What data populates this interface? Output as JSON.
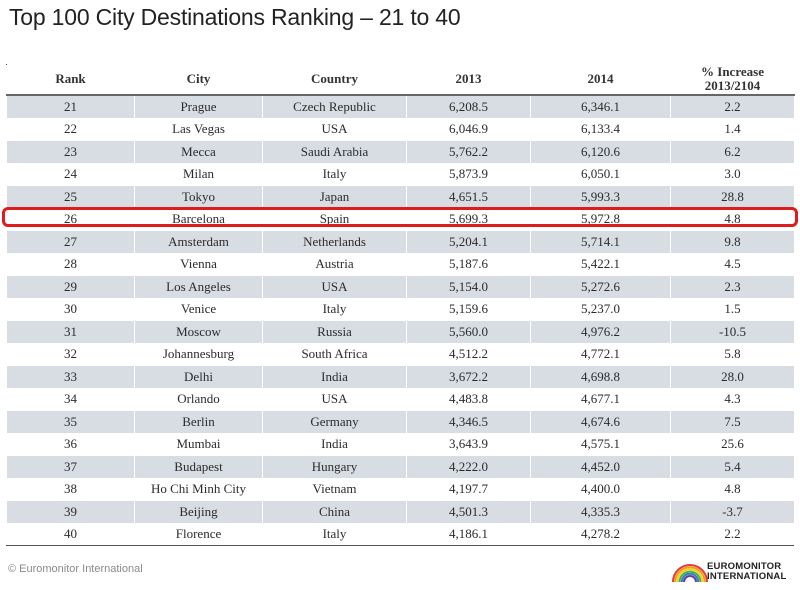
{
  "title": "Top 100 City Destinations Ranking – 21 to 40",
  "columns": {
    "rank": "Rank",
    "city": "City",
    "country": "Country",
    "y2013": "2013",
    "y2014": "2014",
    "increase_line1": "% Increase",
    "increase_line2": "2013/2104"
  },
  "rows": [
    {
      "rank": "21",
      "city": "Prague",
      "country": "Czech Republic",
      "y2013": "6,208.5",
      "y2014": "6,346.1",
      "increase": "2.2"
    },
    {
      "rank": "22",
      "city": "Las Vegas",
      "country": "USA",
      "y2013": "6,046.9",
      "y2014": "6,133.4",
      "increase": "1.4"
    },
    {
      "rank": "23",
      "city": "Mecca",
      "country": "Saudi Arabia",
      "y2013": "5,762.2",
      "y2014": "6,120.6",
      "increase": "6.2"
    },
    {
      "rank": "24",
      "city": "Milan",
      "country": "Italy",
      "y2013": "5,873.9",
      "y2014": "6,050.1",
      "increase": "3.0"
    },
    {
      "rank": "25",
      "city": "Tokyo",
      "country": "Japan",
      "y2013": "4,651.5",
      "y2014": "5,993.3",
      "increase": "28.8"
    },
    {
      "rank": "26",
      "city": "Barcelona",
      "country": "Spain",
      "y2013": "5,699.3",
      "y2014": "5,972.8",
      "increase": "4.8"
    },
    {
      "rank": "27",
      "city": "Amsterdam",
      "country": "Netherlands",
      "y2013": "5,204.1",
      "y2014": "5,714.1",
      "increase": "9.8"
    },
    {
      "rank": "28",
      "city": "Vienna",
      "country": "Austria",
      "y2013": "5,187.6",
      "y2014": "5,422.1",
      "increase": "4.5"
    },
    {
      "rank": "29",
      "city": "Los Angeles",
      "country": "USA",
      "y2013": "5,154.0",
      "y2014": "5,272.6",
      "increase": "2.3"
    },
    {
      "rank": "30",
      "city": "Venice",
      "country": "Italy",
      "y2013": "5,159.6",
      "y2014": "5,237.0",
      "increase": "1.5"
    },
    {
      "rank": "31",
      "city": "Moscow",
      "country": "Russia",
      "y2013": "5,560.0",
      "y2014": "4,976.2",
      "increase": "-10.5"
    },
    {
      "rank": "32",
      "city": "Johannesburg",
      "country": "South Africa",
      "y2013": "4,512.2",
      "y2014": "4,772.1",
      "increase": "5.8"
    },
    {
      "rank": "33",
      "city": "Delhi",
      "country": "India",
      "y2013": "3,672.2",
      "y2014": "4,698.8",
      "increase": "28.0"
    },
    {
      "rank": "34",
      "city": "Orlando",
      "country": "USA",
      "y2013": "4,483.8",
      "y2014": "4,677.1",
      "increase": "4.3"
    },
    {
      "rank": "35",
      "city": "Berlin",
      "country": "Germany",
      "y2013": "4,346.5",
      "y2014": "4,674.6",
      "increase": "7.5"
    },
    {
      "rank": "36",
      "city": "Mumbai",
      "country": "India",
      "y2013": "3,643.9",
      "y2014": "4,575.1",
      "increase": "25.6"
    },
    {
      "rank": "37",
      "city": "Budapest",
      "country": "Hungary",
      "y2013": "4,222.0",
      "y2014": "4,452.0",
      "increase": "5.4"
    },
    {
      "rank": "38",
      "city": "Ho Chi Minh City",
      "country": "Vietnam",
      "y2013": "4,197.7",
      "y2014": "4,400.0",
      "increase": "4.8"
    },
    {
      "rank": "39",
      "city": "Beijing",
      "country": "China",
      "y2013": "4,501.3",
      "y2014": "4,335.3",
      "increase": "-3.7"
    },
    {
      "rank": "40",
      "city": "Florence",
      "country": "Italy",
      "y2013": "4,186.1",
      "y2014": "4,278.2",
      "increase": "2.2"
    }
  ],
  "highlight": {
    "rank": "26",
    "color": "#e01b1b"
  },
  "colors": {
    "row_shade": "#d8dde3",
    "logo": [
      "#e03a3a",
      "#f39a1d",
      "#f6d21b",
      "#4bb04a",
      "#2f7fc4",
      "#6a3d9a"
    ]
  },
  "footer": {
    "copyright": "© Euromonitor International",
    "logo_line1": "EUROMONITOR",
    "logo_line2": "INTERNATIONAL",
    "logo_icon": "euromonitor-rainbow-logo-icon"
  }
}
